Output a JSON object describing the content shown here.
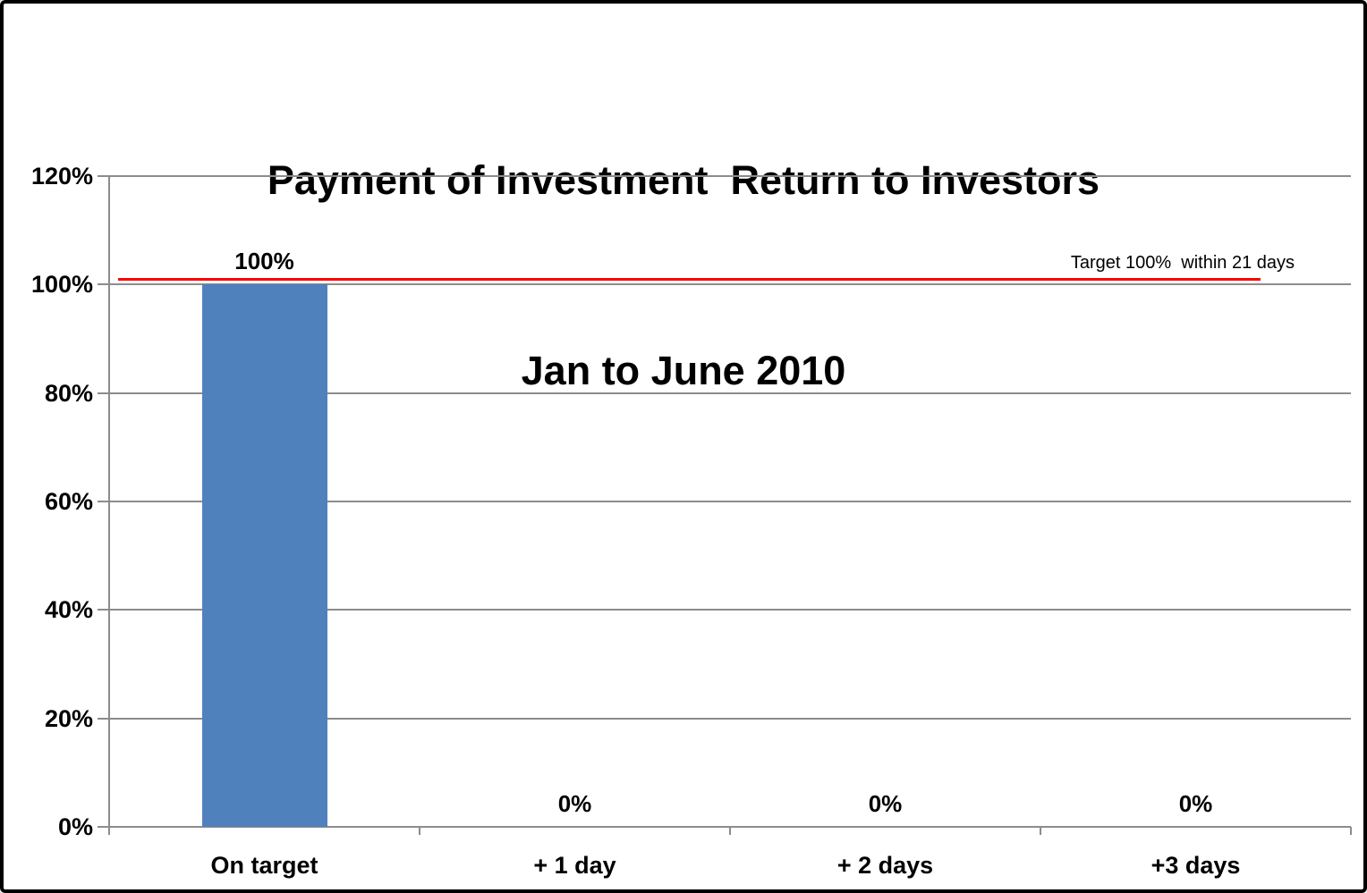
{
  "chart_data": {
    "type": "bar",
    "title_lines": [
      "Payment of Investment  Return to Investors",
      "Jan to June 2010"
    ],
    "categories": [
      "On target",
      "+ 1 day",
      "+ 2 days",
      "+3 days"
    ],
    "values": [
      100,
      0,
      0,
      0
    ],
    "data_labels": [
      "100%",
      "0%",
      "0%",
      "0%"
    ],
    "ylim": [
      0,
      120
    ],
    "yticks": [
      0,
      20,
      40,
      60,
      80,
      100,
      120
    ],
    "ytick_labels": [
      "0%",
      "20%",
      "40%",
      "60%",
      "80%",
      "100%",
      "120%"
    ],
    "xlabel": "",
    "ylabel": "",
    "grid": true,
    "legend": "none",
    "target_line": {
      "value": 101,
      "label": "Target 100%  within 21 days",
      "color": "#fe0000"
    },
    "colors": {
      "bar": "#4F81BD",
      "grid": "#8c8c8c",
      "text": "#000000"
    }
  }
}
